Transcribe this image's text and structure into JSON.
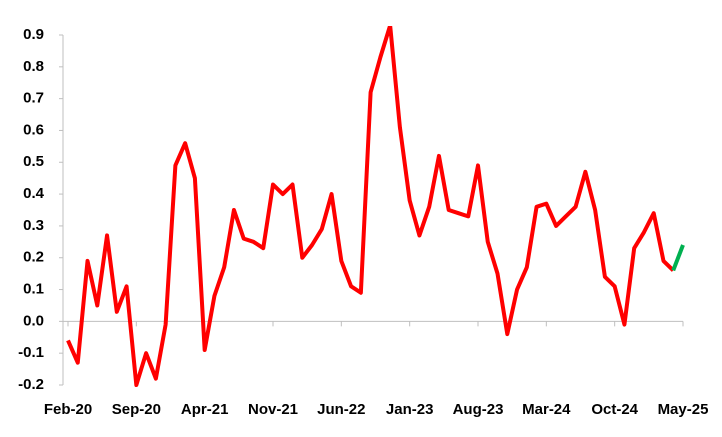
{
  "chart_data": {
    "type": "line",
    "categories": [
      "Feb-20",
      null,
      null,
      null,
      null,
      null,
      null,
      "Sep-20",
      null,
      null,
      null,
      null,
      null,
      null,
      "Apr-21",
      null,
      null,
      null,
      null,
      null,
      null,
      "Nov-21",
      null,
      null,
      null,
      null,
      null,
      null,
      "Jun-22",
      null,
      null,
      null,
      null,
      null,
      null,
      "Jan-23",
      null,
      null,
      null,
      null,
      null,
      null,
      "Aug-23",
      null,
      null,
      null,
      null,
      null,
      null,
      "Mar-24",
      null,
      null,
      null,
      null,
      null,
      null,
      "Oct-24",
      null,
      null,
      null,
      null,
      null,
      null,
      "May-25"
    ],
    "series": [
      {
        "color": "#ff0000",
        "values": [
          -0.06,
          -0.13,
          0.19,
          0.05,
          0.27,
          0.03,
          0.11,
          -0.2,
          -0.1,
          -0.18,
          -0.01,
          0.49,
          0.56,
          0.45,
          -0.09,
          0.08,
          0.17,
          0.35,
          0.26,
          0.25,
          0.23,
          0.43,
          0.4,
          0.43,
          0.2,
          0.24,
          0.29,
          0.4,
          0.19,
          0.11,
          0.09,
          0.72,
          0.83,
          0.93,
          0.61,
          0.38,
          0.27,
          0.36,
          0.52,
          0.35,
          0.34,
          0.33,
          0.49,
          0.25,
          0.15,
          -0.04,
          0.1,
          0.17,
          0.36,
          0.37,
          0.3,
          0.33,
          0.36,
          0.47,
          0.35,
          0.14,
          0.11,
          -0.01,
          0.23,
          0.28,
          0.34,
          0.19,
          0.16,
          null
        ]
      },
      {
        "color": "#00b050",
        "values": [
          null,
          null,
          null,
          null,
          null,
          null,
          null,
          null,
          null,
          null,
          null,
          null,
          null,
          null,
          null,
          null,
          null,
          null,
          null,
          null,
          null,
          null,
          null,
          null,
          null,
          null,
          null,
          null,
          null,
          null,
          null,
          null,
          null,
          null,
          null,
          null,
          null,
          null,
          null,
          null,
          null,
          null,
          null,
          null,
          null,
          null,
          null,
          null,
          null,
          null,
          null,
          null,
          null,
          null,
          null,
          null,
          null,
          null,
          null,
          null,
          null,
          null,
          0.16,
          0.24
        ]
      }
    ],
    "ylim": [
      -0.2,
      0.9
    ],
    "yticks": [
      -0.2,
      -0.1,
      {
        "value": 0,
        "label": "0.0"
      },
      0.1,
      0.2,
      0.3,
      0.4,
      0.5,
      0.6,
      0.7,
      0.8,
      0.9
    ],
    "grid": false
  }
}
